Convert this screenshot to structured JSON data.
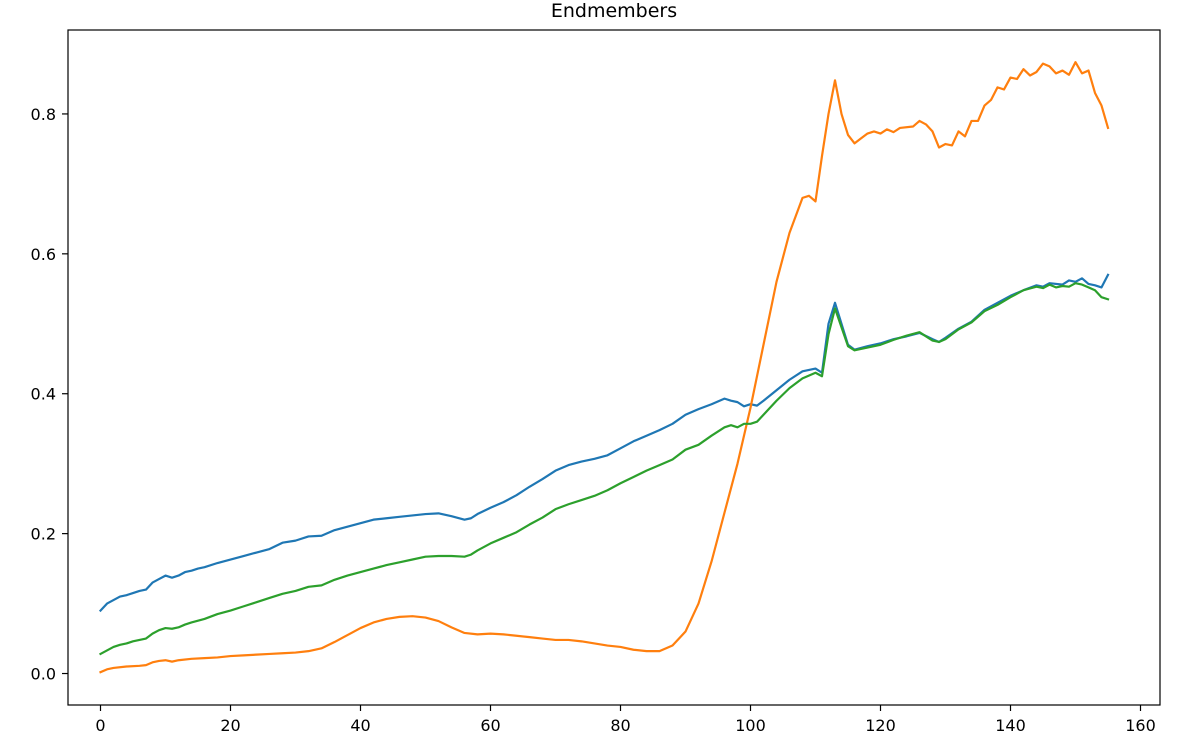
{
  "chart_data": {
    "type": "line",
    "title": "Endmembers",
    "xlabel": "",
    "ylabel": "",
    "xlim": [
      -5,
      163
    ],
    "ylim": [
      -0.045,
      0.92
    ],
    "x_ticks": [
      0,
      20,
      40,
      60,
      80,
      100,
      120,
      140,
      160
    ],
    "y_ticks": [
      0.0,
      0.2,
      0.4,
      0.6,
      0.8
    ],
    "x_tick_labels": [
      "0",
      "20",
      "40",
      "60",
      "80",
      "100",
      "120",
      "140",
      "160"
    ],
    "y_tick_labels": [
      "0.0",
      "0.2",
      "0.4",
      "0.6",
      "0.8"
    ],
    "grid": false,
    "legend": "none",
    "series": [
      {
        "color": "#1f77b4",
        "points": [
          [
            0,
            0.09
          ],
          [
            1,
            0.1
          ],
          [
            2,
            0.105
          ],
          [
            3,
            0.11
          ],
          [
            4,
            0.112
          ],
          [
            5,
            0.115
          ],
          [
            6,
            0.118
          ],
          [
            7,
            0.12
          ],
          [
            8,
            0.13
          ],
          [
            9,
            0.135
          ],
          [
            10,
            0.14
          ],
          [
            11,
            0.137
          ],
          [
            12,
            0.14
          ],
          [
            13,
            0.145
          ],
          [
            14,
            0.147
          ],
          [
            15,
            0.15
          ],
          [
            16,
            0.152
          ],
          [
            18,
            0.158
          ],
          [
            20,
            0.163
          ],
          [
            22,
            0.168
          ],
          [
            24,
            0.173
          ],
          [
            26,
            0.178
          ],
          [
            28,
            0.187
          ],
          [
            30,
            0.19
          ],
          [
            32,
            0.196
          ],
          [
            34,
            0.197
          ],
          [
            36,
            0.205
          ],
          [
            38,
            0.21
          ],
          [
            40,
            0.215
          ],
          [
            42,
            0.22
          ],
          [
            44,
            0.222
          ],
          [
            46,
            0.224
          ],
          [
            48,
            0.226
          ],
          [
            50,
            0.228
          ],
          [
            52,
            0.229
          ],
          [
            54,
            0.225
          ],
          [
            56,
            0.22
          ],
          [
            57,
            0.222
          ],
          [
            58,
            0.228
          ],
          [
            60,
            0.237
          ],
          [
            62,
            0.245
          ],
          [
            64,
            0.255
          ],
          [
            66,
            0.267
          ],
          [
            68,
            0.278
          ],
          [
            70,
            0.29
          ],
          [
            72,
            0.298
          ],
          [
            74,
            0.303
          ],
          [
            76,
            0.307
          ],
          [
            78,
            0.312
          ],
          [
            80,
            0.322
          ],
          [
            82,
            0.332
          ],
          [
            84,
            0.34
          ],
          [
            86,
            0.348
          ],
          [
            88,
            0.357
          ],
          [
            90,
            0.37
          ],
          [
            92,
            0.378
          ],
          [
            94,
            0.385
          ],
          [
            96,
            0.393
          ],
          [
            97,
            0.39
          ],
          [
            98,
            0.388
          ],
          [
            99,
            0.382
          ],
          [
            100,
            0.385
          ],
          [
            101,
            0.383
          ],
          [
            102,
            0.39
          ],
          [
            104,
            0.405
          ],
          [
            106,
            0.42
          ],
          [
            108,
            0.432
          ],
          [
            110,
            0.436
          ],
          [
            111,
            0.43
          ],
          [
            112,
            0.5
          ],
          [
            113,
            0.53
          ],
          [
            114,
            0.5
          ],
          [
            115,
            0.47
          ],
          [
            116,
            0.463
          ],
          [
            118,
            0.468
          ],
          [
            120,
            0.472
          ],
          [
            122,
            0.478
          ],
          [
            124,
            0.482
          ],
          [
            126,
            0.487
          ],
          [
            128,
            0.478
          ],
          [
            129,
            0.474
          ],
          [
            130,
            0.48
          ],
          [
            132,
            0.493
          ],
          [
            134,
            0.503
          ],
          [
            136,
            0.52
          ],
          [
            138,
            0.53
          ],
          [
            140,
            0.54
          ],
          [
            142,
            0.548
          ],
          [
            144,
            0.555
          ],
          [
            145,
            0.553
          ],
          [
            146,
            0.558
          ],
          [
            148,
            0.556
          ],
          [
            149,
            0.562
          ],
          [
            150,
            0.56
          ],
          [
            151,
            0.565
          ],
          [
            152,
            0.557
          ],
          [
            153,
            0.555
          ],
          [
            154,
            0.552
          ],
          [
            155,
            0.57
          ]
        ]
      },
      {
        "color": "#ff7f0e",
        "points": [
          [
            0,
            0.002
          ],
          [
            1,
            0.006
          ],
          [
            2,
            0.008
          ],
          [
            4,
            0.01
          ],
          [
            6,
            0.011
          ],
          [
            7,
            0.012
          ],
          [
            8,
            0.016
          ],
          [
            9,
            0.018
          ],
          [
            10,
            0.019
          ],
          [
            11,
            0.017
          ],
          [
            12,
            0.019
          ],
          [
            14,
            0.021
          ],
          [
            16,
            0.022
          ],
          [
            18,
            0.023
          ],
          [
            20,
            0.025
          ],
          [
            22,
            0.026
          ],
          [
            24,
            0.027
          ],
          [
            26,
            0.028
          ],
          [
            28,
            0.029
          ],
          [
            30,
            0.03
          ],
          [
            32,
            0.032
          ],
          [
            34,
            0.036
          ],
          [
            36,
            0.045
          ],
          [
            38,
            0.055
          ],
          [
            40,
            0.065
          ],
          [
            42,
            0.073
          ],
          [
            44,
            0.078
          ],
          [
            46,
            0.081
          ],
          [
            48,
            0.082
          ],
          [
            50,
            0.08
          ],
          [
            52,
            0.075
          ],
          [
            54,
            0.066
          ],
          [
            56,
            0.058
          ],
          [
            58,
            0.056
          ],
          [
            60,
            0.057
          ],
          [
            62,
            0.056
          ],
          [
            64,
            0.054
          ],
          [
            66,
            0.052
          ],
          [
            68,
            0.05
          ],
          [
            70,
            0.048
          ],
          [
            72,
            0.048
          ],
          [
            74,
            0.046
          ],
          [
            76,
            0.043
          ],
          [
            78,
            0.04
          ],
          [
            80,
            0.038
          ],
          [
            82,
            0.034
          ],
          [
            84,
            0.032
          ],
          [
            86,
            0.032
          ],
          [
            88,
            0.04
          ],
          [
            90,
            0.06
          ],
          [
            92,
            0.1
          ],
          [
            94,
            0.16
          ],
          [
            96,
            0.23
          ],
          [
            98,
            0.3
          ],
          [
            100,
            0.38
          ],
          [
            102,
            0.47
          ],
          [
            104,
            0.56
          ],
          [
            106,
            0.63
          ],
          [
            108,
            0.68
          ],
          [
            109,
            0.683
          ],
          [
            110,
            0.675
          ],
          [
            111,
            0.74
          ],
          [
            112,
            0.8
          ],
          [
            113,
            0.848
          ],
          [
            114,
            0.8
          ],
          [
            115,
            0.77
          ],
          [
            116,
            0.758
          ],
          [
            117,
            0.765
          ],
          [
            118,
            0.772
          ],
          [
            119,
            0.775
          ],
          [
            120,
            0.772
          ],
          [
            121,
            0.778
          ],
          [
            122,
            0.774
          ],
          [
            123,
            0.78
          ],
          [
            125,
            0.782
          ],
          [
            126,
            0.79
          ],
          [
            127,
            0.785
          ],
          [
            128,
            0.775
          ],
          [
            129,
            0.752
          ],
          [
            130,
            0.757
          ],
          [
            131,
            0.755
          ],
          [
            132,
            0.775
          ],
          [
            133,
            0.768
          ],
          [
            134,
            0.79
          ],
          [
            135,
            0.79
          ],
          [
            136,
            0.812
          ],
          [
            137,
            0.82
          ],
          [
            138,
            0.838
          ],
          [
            139,
            0.835
          ],
          [
            140,
            0.852
          ],
          [
            141,
            0.85
          ],
          [
            142,
            0.864
          ],
          [
            143,
            0.855
          ],
          [
            144,
            0.86
          ],
          [
            145,
            0.872
          ],
          [
            146,
            0.868
          ],
          [
            147,
            0.858
          ],
          [
            148,
            0.862
          ],
          [
            149,
            0.856
          ],
          [
            150,
            0.874
          ],
          [
            151,
            0.858
          ],
          [
            152,
            0.862
          ],
          [
            153,
            0.83
          ],
          [
            154,
            0.812
          ],
          [
            155,
            0.78
          ]
        ]
      },
      {
        "color": "#2ca02c",
        "points": [
          [
            0,
            0.028
          ],
          [
            1,
            0.033
          ],
          [
            2,
            0.038
          ],
          [
            3,
            0.041
          ],
          [
            4,
            0.043
          ],
          [
            5,
            0.046
          ],
          [
            6,
            0.048
          ],
          [
            7,
            0.05
          ],
          [
            8,
            0.057
          ],
          [
            9,
            0.062
          ],
          [
            10,
            0.065
          ],
          [
            11,
            0.064
          ],
          [
            12,
            0.066
          ],
          [
            13,
            0.07
          ],
          [
            14,
            0.073
          ],
          [
            16,
            0.078
          ],
          [
            18,
            0.085
          ],
          [
            20,
            0.09
          ],
          [
            22,
            0.096
          ],
          [
            24,
            0.102
          ],
          [
            26,
            0.108
          ],
          [
            28,
            0.114
          ],
          [
            30,
            0.118
          ],
          [
            32,
            0.124
          ],
          [
            34,
            0.126
          ],
          [
            36,
            0.134
          ],
          [
            38,
            0.14
          ],
          [
            40,
            0.145
          ],
          [
            42,
            0.15
          ],
          [
            44,
            0.155
          ],
          [
            46,
            0.159
          ],
          [
            48,
            0.163
          ],
          [
            50,
            0.167
          ],
          [
            52,
            0.168
          ],
          [
            54,
            0.168
          ],
          [
            56,
            0.167
          ],
          [
            57,
            0.17
          ],
          [
            58,
            0.176
          ],
          [
            60,
            0.186
          ],
          [
            62,
            0.194
          ],
          [
            64,
            0.202
          ],
          [
            66,
            0.213
          ],
          [
            68,
            0.223
          ],
          [
            70,
            0.235
          ],
          [
            72,
            0.242
          ],
          [
            74,
            0.248
          ],
          [
            76,
            0.254
          ],
          [
            78,
            0.262
          ],
          [
            80,
            0.272
          ],
          [
            82,
            0.281
          ],
          [
            84,
            0.29
          ],
          [
            86,
            0.298
          ],
          [
            88,
            0.306
          ],
          [
            90,
            0.32
          ],
          [
            92,
            0.327
          ],
          [
            94,
            0.34
          ],
          [
            96,
            0.352
          ],
          [
            97,
            0.355
          ],
          [
            98,
            0.352
          ],
          [
            99,
            0.357
          ],
          [
            100,
            0.357
          ],
          [
            101,
            0.36
          ],
          [
            102,
            0.37
          ],
          [
            104,
            0.39
          ],
          [
            106,
            0.408
          ],
          [
            108,
            0.422
          ],
          [
            110,
            0.43
          ],
          [
            111,
            0.425
          ],
          [
            112,
            0.485
          ],
          [
            113,
            0.522
          ],
          [
            114,
            0.495
          ],
          [
            115,
            0.468
          ],
          [
            116,
            0.462
          ],
          [
            118,
            0.466
          ],
          [
            120,
            0.47
          ],
          [
            122,
            0.477
          ],
          [
            124,
            0.483
          ],
          [
            126,
            0.488
          ],
          [
            128,
            0.476
          ],
          [
            129,
            0.474
          ],
          [
            130,
            0.478
          ],
          [
            132,
            0.492
          ],
          [
            134,
            0.502
          ],
          [
            136,
            0.518
          ],
          [
            138,
            0.527
          ],
          [
            140,
            0.538
          ],
          [
            142,
            0.548
          ],
          [
            144,
            0.553
          ],
          [
            145,
            0.551
          ],
          [
            146,
            0.556
          ],
          [
            147,
            0.552
          ],
          [
            148,
            0.554
          ],
          [
            149,
            0.553
          ],
          [
            150,
            0.558
          ],
          [
            151,
            0.556
          ],
          [
            152,
            0.552
          ],
          [
            153,
            0.548
          ],
          [
            154,
            0.538
          ],
          [
            155,
            0.535
          ]
        ]
      }
    ]
  }
}
